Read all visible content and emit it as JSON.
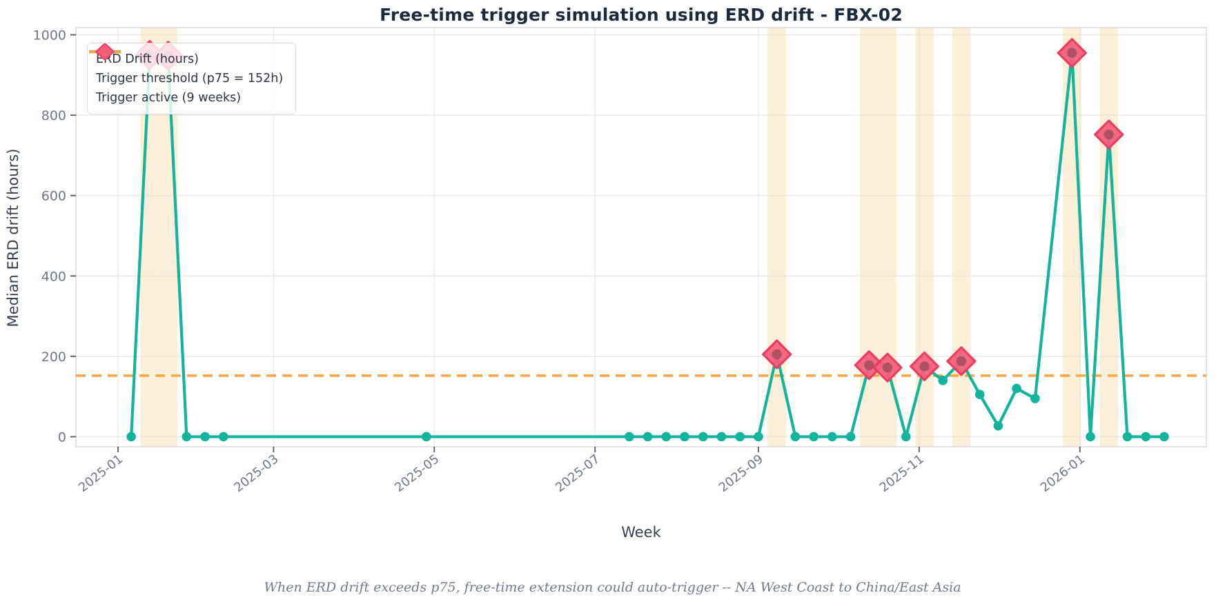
{
  "chart_data": {
    "type": "line",
    "title": "Free-time trigger simulation using ERD drift - FBX-02",
    "xlabel": "Week",
    "ylabel": "Median ERD drift (hours)",
    "caption": "When ERD drift exceeds p75, free-time extension could auto-trigger  --  NA West Coast to China/East Asia",
    "threshold_value": 152,
    "trigger_week_count": 9,
    "legend": [
      {
        "label": "ERD Drift (hours)",
        "type": "line-with-marker"
      },
      {
        "label": "Trigger threshold (p75 = 152h)",
        "type": "dashed-line"
      },
      {
        "label": "Trigger active (9 weeks)",
        "type": "diamond-marker"
      }
    ],
    "yticks": [
      0,
      200,
      400,
      600,
      800,
      1000
    ],
    "ylim": [
      -25,
      1018
    ],
    "xlim": [
      "2024-12-16",
      "2026-02-18"
    ],
    "xticks": [
      {
        "date": "2025-01-01",
        "label": "2025-01"
      },
      {
        "date": "2025-03-01",
        "label": "2025-03"
      },
      {
        "date": "2025-05-01",
        "label": "2025-05"
      },
      {
        "date": "2025-07-01",
        "label": "2025-07"
      },
      {
        "date": "2025-09-01",
        "label": "2025-09"
      },
      {
        "date": "2025-11-01",
        "label": "2025-11"
      },
      {
        "date": "2026-01-01",
        "label": "2026-01"
      }
    ],
    "grid": true,
    "legend_position": "upper-left",
    "trigger_band_halfwidth_days": 3.5,
    "series": [
      {
        "name": "ERD Drift (hours)",
        "points": [
          {
            "week": "2025-01-06",
            "value": 0,
            "trigger": false
          },
          {
            "week": "2025-01-13",
            "value": 950,
            "trigger": true
          },
          {
            "week": "2025-01-20",
            "value": 948,
            "trigger": true
          },
          {
            "week": "2025-01-27",
            "value": 0,
            "trigger": false
          },
          {
            "week": "2025-02-03",
            "value": 0,
            "trigger": false
          },
          {
            "week": "2025-02-10",
            "value": 0,
            "trigger": false
          },
          {
            "week": "2025-04-28",
            "value": 0,
            "trigger": false
          },
          {
            "week": "2025-07-14",
            "value": 0,
            "trigger": false
          },
          {
            "week": "2025-07-21",
            "value": 0,
            "trigger": false
          },
          {
            "week": "2025-07-28",
            "value": 0,
            "trigger": false
          },
          {
            "week": "2025-08-04",
            "value": 0,
            "trigger": false
          },
          {
            "week": "2025-08-11",
            "value": 0,
            "trigger": false
          },
          {
            "week": "2025-08-18",
            "value": 0,
            "trigger": false
          },
          {
            "week": "2025-08-25",
            "value": 0,
            "trigger": false
          },
          {
            "week": "2025-09-01",
            "value": 0,
            "trigger": false
          },
          {
            "week": "2025-09-08",
            "value": 205,
            "trigger": true
          },
          {
            "week": "2025-09-15",
            "value": 0,
            "trigger": false
          },
          {
            "week": "2025-09-22",
            "value": 0,
            "trigger": false
          },
          {
            "week": "2025-09-29",
            "value": 0,
            "trigger": false
          },
          {
            "week": "2025-10-06",
            "value": 0,
            "trigger": false
          },
          {
            "week": "2025-10-13",
            "value": 178,
            "trigger": true
          },
          {
            "week": "2025-10-20",
            "value": 172,
            "trigger": true
          },
          {
            "week": "2025-10-27",
            "value": 0,
            "trigger": false
          },
          {
            "week": "2025-11-03",
            "value": 175,
            "trigger": true
          },
          {
            "week": "2025-11-10",
            "value": 140,
            "trigger": false
          },
          {
            "week": "2025-11-17",
            "value": 188,
            "trigger": true
          },
          {
            "week": "2025-11-24",
            "value": 105,
            "trigger": false
          },
          {
            "week": "2025-12-01",
            "value": 27,
            "trigger": false
          },
          {
            "week": "2025-12-08",
            "value": 120,
            "trigger": false
          },
          {
            "week": "2025-12-15",
            "value": 95,
            "trigger": false
          },
          {
            "week": "2025-12-29",
            "value": 955,
            "trigger": true
          },
          {
            "week": "2026-01-05",
            "value": 0,
            "trigger": false
          },
          {
            "week": "2026-01-12",
            "value": 752,
            "trigger": true
          },
          {
            "week": "2026-01-19",
            "value": 0,
            "trigger": false
          },
          {
            "week": "2026-01-26",
            "value": 0,
            "trigger": false
          },
          {
            "week": "2026-02-02",
            "value": 0,
            "trigger": false
          }
        ]
      }
    ],
    "colors": {
      "series_line": "#12b49b",
      "threshold_line": "#fca43e",
      "trigger_diamond_fill": "#f4607c",
      "trigger_diamond_edge": "#ea3e5e",
      "trigger_diamond_core": "#a34e60",
      "trigger_band": "#f8d9a8",
      "gridline": "#e9ebf1",
      "plot_border": "#d7dbe2",
      "tick_text": "#6e7888",
      "title_text": "#1c2b3c"
    }
  }
}
